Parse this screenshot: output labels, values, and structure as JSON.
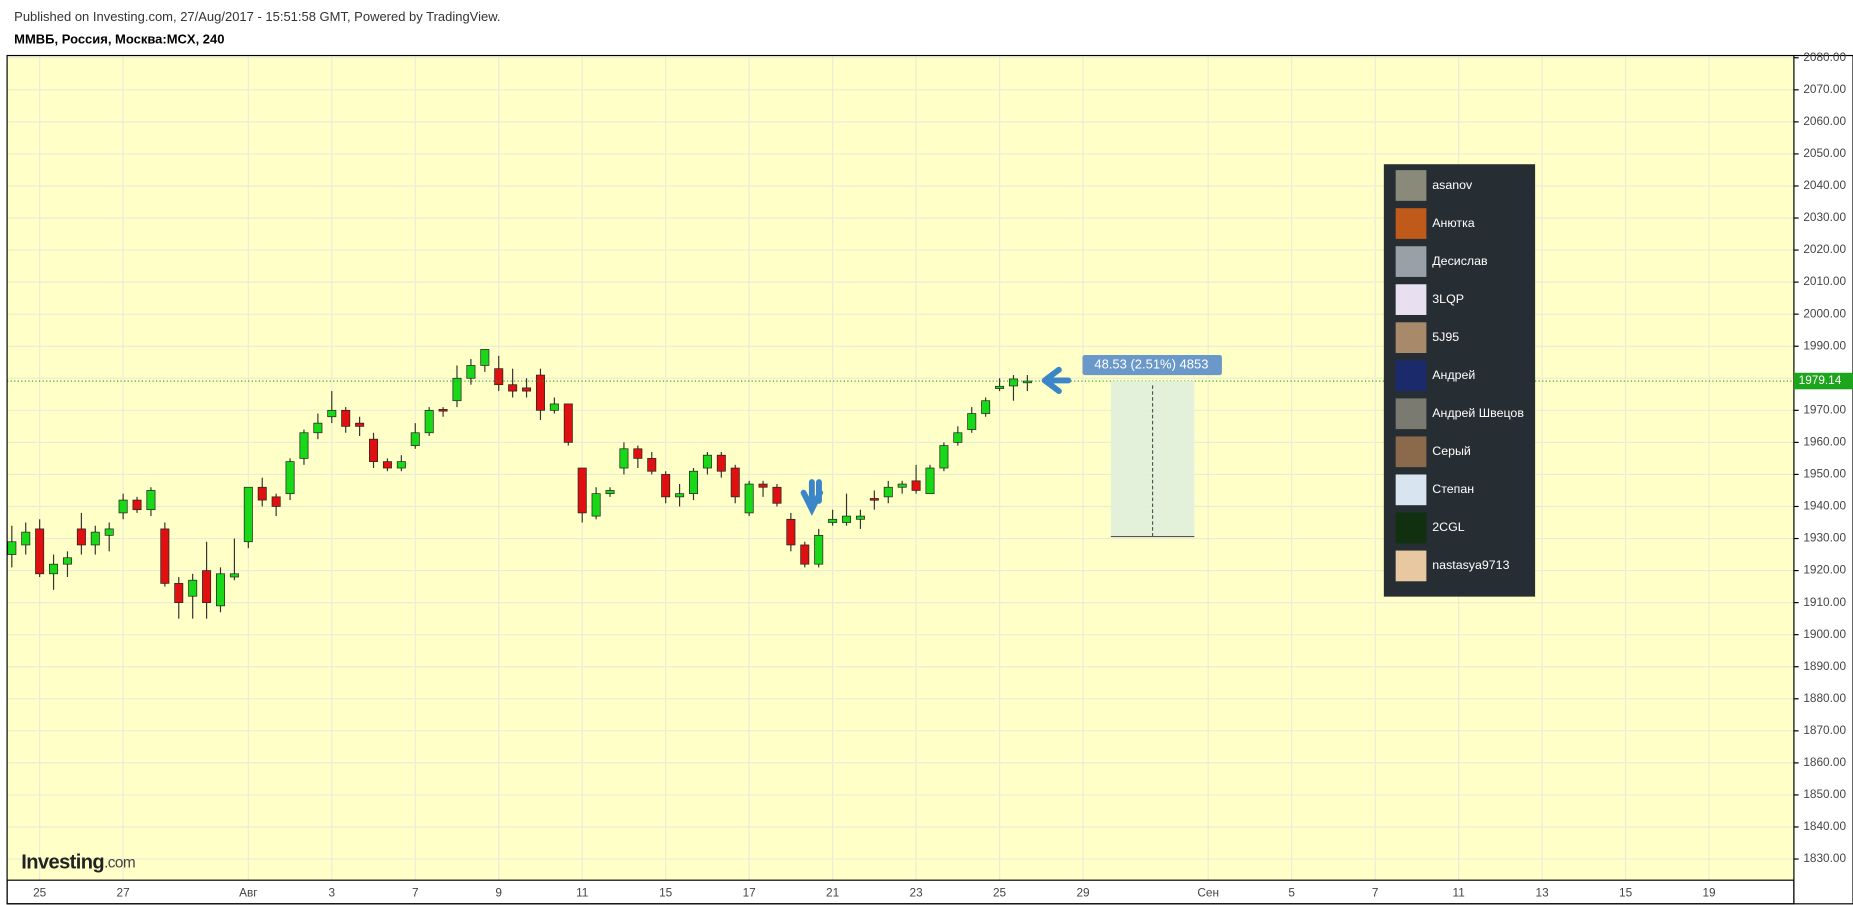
{
  "header": {
    "published": "Published on Investing.com, 27/Aug/2017 - 15:51:58 GMT, Powered by TradingView.",
    "symbol": "ММВБ, Россия, Москва:MCX, 240"
  },
  "logo": {
    "brand": "Investing",
    "suffix": ".com"
  },
  "users": [
    "asanov",
    "Анютка",
    "Десислав",
    "3LQP",
    "5J95",
    "Андрей",
    "Андрей Швецов",
    "Серый",
    "Степан",
    "2CGL",
    "nastasya9713"
  ],
  "chart_data": {
    "type": "candlestick",
    "up_color": "#18d818",
    "down_color": "#e01010",
    "background": "#ffffc8",
    "grid": true,
    "xlim": [
      -0.34,
      128.1
    ],
    "ylim": [
      1823.4,
      2080.7
    ],
    "xticks": [
      {
        "value": 2,
        "label": "25"
      },
      {
        "value": 8,
        "label": "27"
      },
      {
        "value": 17,
        "label": "Авг"
      },
      {
        "value": 23,
        "label": "3"
      },
      {
        "value": 29,
        "label": "7"
      },
      {
        "value": 35,
        "label": "9"
      },
      {
        "value": 41,
        "label": "11"
      },
      {
        "value": 47,
        "label": "15"
      },
      {
        "value": 53,
        "label": "17"
      },
      {
        "value": 59,
        "label": "21"
      },
      {
        "value": 65,
        "label": "23"
      },
      {
        "value": 71,
        "label": "25"
      },
      {
        "value": 77,
        "label": "29"
      },
      {
        "value": 86,
        "label": "Сен"
      },
      {
        "value": 92,
        "label": "5"
      },
      {
        "value": 98,
        "label": "7"
      },
      {
        "value": 104,
        "label": "11"
      },
      {
        "value": 110,
        "label": "13"
      },
      {
        "value": 116,
        "label": "15"
      },
      {
        "value": 122,
        "label": "19"
      }
    ],
    "yticks": [
      {
        "value": 1830,
        "label": "1830.00"
      },
      {
        "value": 1840,
        "label": "1840.00"
      },
      {
        "value": 1850,
        "label": "1850.00"
      },
      {
        "value": 1860,
        "label": "1860.00"
      },
      {
        "value": 1870,
        "label": "1870.00"
      },
      {
        "value": 1880,
        "label": "1880.00"
      },
      {
        "value": 1890,
        "label": "1890.00"
      },
      {
        "value": 1900,
        "label": "1900.00"
      },
      {
        "value": 1910,
        "label": "1910.00"
      },
      {
        "value": 1920,
        "label": "1920.00"
      },
      {
        "value": 1930,
        "label": "1930.00"
      },
      {
        "value": 1940,
        "label": "1940.00"
      },
      {
        "value": 1950,
        "label": "1950.00"
      },
      {
        "value": 1960,
        "label": "1960.00"
      },
      {
        "value": 1970,
        "label": "1970.00"
      },
      {
        "value": 1980,
        "label": "1980.00"
      },
      {
        "value": 1990,
        "label": "1990.00"
      },
      {
        "value": 2000,
        "label": "2000.00"
      },
      {
        "value": 2010,
        "label": "2010.00"
      },
      {
        "value": 2020,
        "label": "2020.00"
      },
      {
        "value": 2030,
        "label": "2030.00"
      },
      {
        "value": 2040,
        "label": "2040.00"
      },
      {
        "value": 2050,
        "label": "2050.00"
      },
      {
        "value": 2060,
        "label": "2060.00"
      },
      {
        "value": 2070,
        "label": "2070.00"
      },
      {
        "value": 2080,
        "label": "2080.00"
      }
    ],
    "open": [
      1925,
      1928,
      1933,
      1919,
      1922,
      1933,
      1928,
      1931,
      1938,
      1942,
      1939,
      1933,
      1916,
      1912,
      1920,
      1909,
      1918,
      1929,
      1946,
      1943,
      1944,
      1955,
      1963,
      1968,
      1970,
      1966,
      1961,
      1954,
      1952,
      1959,
      1963,
      1970.3,
      1973,
      1980,
      1984,
      1983,
      1978,
      1977,
      1981,
      1970,
      1972,
      1952,
      1937,
      1944,
      1952,
      1958,
      1955,
      1950,
      1943,
      1944,
      1952,
      1956,
      1952,
      1938,
      1947,
      1946,
      1936,
      1928,
      1922,
      1935,
      1935,
      1936,
      1942.5,
      1943,
      1946,
      1948,
      1944,
      1952,
      1960,
      1964,
      1969,
      1976.8,
      1977.6,
      1979
    ],
    "high": [
      1934,
      1935,
      1936,
      1925,
      1926,
      1938,
      1934,
      1935,
      1944,
      1943,
      1946,
      1935,
      1918,
      1919,
      1929,
      1921,
      1930,
      1946,
      1949,
      1944,
      1955,
      1964,
      1969,
      1976,
      1971,
      1968,
      1963,
      1955,
      1956,
      1966,
      1971,
      1971,
      1984,
      1986,
      1989,
      1987,
      1983,
      1980,
      1983,
      1974,
      1972,
      1952,
      1946,
      1946,
      1960,
      1959,
      1957,
      1951,
      1947,
      1952,
      1957,
      1957,
      1953,
      1948,
      1948,
      1947,
      1938,
      1929,
      1933,
      1939,
      1944,
      1939,
      1945,
      1948,
      1948,
      1953,
      1953,
      1960,
      1965,
      1971,
      1974,
      1980,
      1981,
      1981
    ],
    "low": [
      1921,
      1925,
      1918,
      1914,
      1918,
      1925,
      1925,
      1926,
      1936,
      1938,
      1937,
      1915,
      1905,
      1905,
      1905,
      1907,
      1917,
      1927,
      1940,
      1937,
      1942,
      1953,
      1961,
      1966,
      1963,
      1962,
      1952,
      1951,
      1951,
      1958,
      1962,
      1968,
      1971,
      1978,
      1982,
      1976,
      1974,
      1974,
      1967,
      1969,
      1959,
      1935,
      1936,
      1943,
      1950,
      1952,
      1950,
      1941,
      1940,
      1942,
      1950,
      1949,
      1941,
      1937,
      1943,
      1940,
      1926,
      1921,
      1921,
      1934,
      1934,
      1933,
      1939,
      1941,
      1944,
      1944,
      1944,
      1951,
      1959,
      1963,
      1968,
      1976,
      1973,
      1976
    ],
    "close": [
      1929,
      1932,
      1919,
      1922,
      1924,
      1928,
      1932,
      1933,
      1942,
      1939,
      1945,
      1916,
      1910,
      1917,
      1910,
      1919,
      1919,
      1946,
      1942,
      1940,
      1954,
      1963,
      1966,
      1970,
      1965,
      1965,
      1954,
      1952,
      1954,
      1963,
      1970,
      1969.8,
      1980,
      1984,
      1989,
      1978,
      1976,
      1976,
      1970,
      1972,
      1960,
      1938,
      1944,
      1945,
      1958,
      1955,
      1951,
      1943,
      1944,
      1951,
      1956,
      1951,
      1943,
      1947,
      1946,
      1941,
      1928,
      1922,
      1931,
      1936,
      1937,
      1937,
      1942,
      1946,
      1947,
      1945,
      1952,
      1959,
      1963,
      1969,
      1973,
      1977.5,
      1979.8,
      1979.14
    ],
    "last_price": 1979.14,
    "measure": {
      "label": "48.53 (2.51%) 4853",
      "start": 1979.14,
      "end": 1930.61,
      "x": [
        79,
        85
      ]
    }
  }
}
